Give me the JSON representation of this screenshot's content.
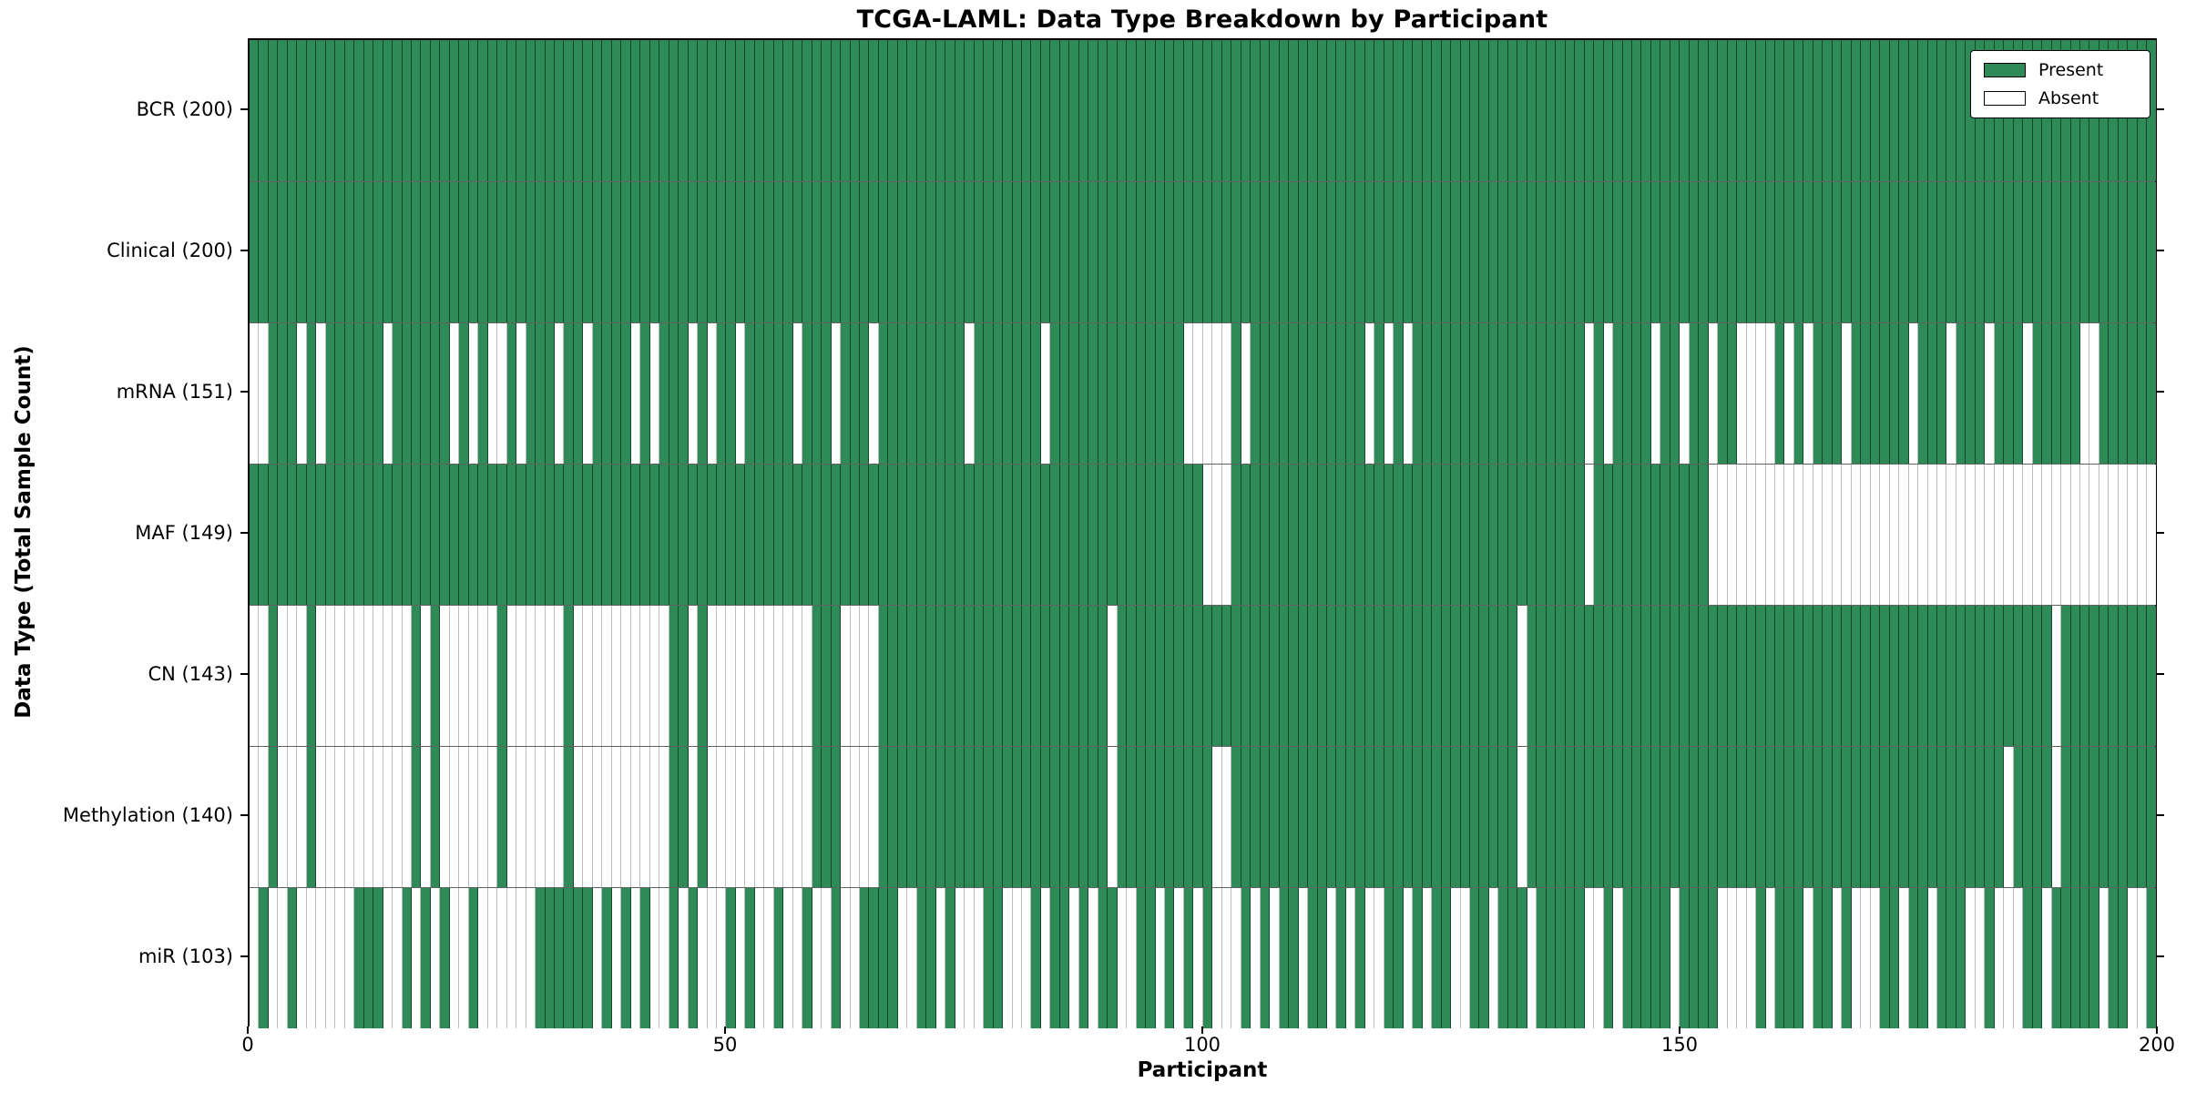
{
  "title": "TCGA-LAML: Data Type Breakdown by Participant",
  "x_axis": {
    "label": "Participant",
    "ticks": [
      0,
      50,
      100,
      150,
      200
    ],
    "range": [
      0,
      200
    ]
  },
  "y_axis": {
    "label": "Data Type (Total Sample Count)"
  },
  "legend": {
    "present_label": "Present",
    "absent_label": "Absent",
    "position": "upper-right"
  },
  "colors": {
    "present": "#2e8b57",
    "absent": "#ffffff",
    "cell_edge_on_green": "rgba(0,0,0,0.50)",
    "cell_edge_on_white": "#bdbdbd",
    "spine": "#000000"
  },
  "chart_data": {
    "type": "heatmap",
    "title": "TCGA-LAML: Data Type Breakdown by Participant",
    "xlabel": "Participant",
    "ylabel": "Data Type (Total Sample Count)",
    "x_range": [
      0,
      200
    ],
    "n_participants": 200,
    "grid": false,
    "legend_entries": [
      "Present",
      "Absent"
    ],
    "rows": [
      {
        "name": "BCR",
        "label": "BCR (200)",
        "present_total": 200,
        "absent": []
      },
      {
        "name": "Clinical",
        "label": "Clinical (200)",
        "present_total": 200,
        "absent": []
      },
      {
        "name": "mRNA",
        "label": "mRNA (151)",
        "present_total": 151,
        "absent": [
          0,
          1,
          5,
          7,
          14,
          21,
          23,
          25,
          26,
          28,
          32,
          35,
          40,
          42,
          46,
          48,
          51,
          57,
          61,
          65,
          75,
          83,
          98,
          99,
          100,
          101,
          102,
          104,
          117,
          119,
          121,
          140,
          142,
          147,
          150,
          153,
          156,
          157,
          158,
          159,
          161,
          163,
          167,
          174,
          178,
          182,
          186,
          192,
          193
        ]
      },
      {
        "name": "MAF",
        "label": "MAF (149)",
        "present_total": 149,
        "absent": [
          100,
          101,
          102,
          140,
          153,
          154,
          155,
          156,
          157,
          158,
          159,
          160,
          161,
          162,
          163,
          164,
          165,
          166,
          167,
          168,
          169,
          170,
          171,
          172,
          173,
          174,
          175,
          176,
          177,
          178,
          179,
          180,
          181,
          182,
          183,
          184,
          185,
          186,
          187,
          188,
          189,
          190,
          191,
          192,
          193,
          194,
          195,
          196,
          197,
          198,
          199
        ]
      },
      {
        "name": "CN",
        "label": "CN (143)",
        "present_total": 143,
        "absent": [
          0,
          1,
          3,
          4,
          5,
          7,
          8,
          9,
          10,
          11,
          12,
          13,
          14,
          15,
          16,
          18,
          20,
          21,
          22,
          23,
          24,
          25,
          27,
          28,
          29,
          30,
          31,
          32,
          34,
          35,
          36,
          37,
          38,
          39,
          40,
          41,
          42,
          43,
          46,
          48,
          49,
          50,
          51,
          52,
          53,
          54,
          55,
          56,
          57,
          58,
          62,
          63,
          64,
          65,
          90,
          133,
          189
        ]
      },
      {
        "name": "Methylation",
        "label": "Methylation (140)",
        "present_total": 140,
        "absent": [
          0,
          1,
          3,
          4,
          5,
          7,
          8,
          9,
          10,
          11,
          12,
          13,
          14,
          15,
          16,
          18,
          20,
          21,
          22,
          23,
          24,
          25,
          27,
          28,
          29,
          30,
          31,
          32,
          34,
          35,
          36,
          37,
          38,
          39,
          40,
          41,
          42,
          43,
          46,
          48,
          49,
          50,
          51,
          52,
          53,
          54,
          55,
          56,
          57,
          58,
          62,
          63,
          64,
          65,
          90,
          101,
          102,
          133,
          184,
          189
        ]
      },
      {
        "name": "miR",
        "label": "miR (103)",
        "present_total": 103,
        "absent": [
          0,
          2,
          3,
          5,
          6,
          7,
          8,
          9,
          10,
          14,
          15,
          17,
          19,
          21,
          22,
          24,
          25,
          26,
          27,
          28,
          29,
          36,
          38,
          40,
          42,
          43,
          45,
          47,
          48,
          49,
          51,
          53,
          54,
          56,
          57,
          59,
          60,
          62,
          63,
          68,
          69,
          72,
          74,
          75,
          76,
          79,
          80,
          81,
          83,
          86,
          88,
          91,
          92,
          95,
          97,
          99,
          101,
          102,
          103,
          105,
          107,
          110,
          113,
          115,
          117,
          118,
          121,
          123,
          126,
          127,
          130,
          134,
          140,
          141,
          143,
          149,
          154,
          155,
          156,
          157,
          159,
          163,
          166,
          168,
          169,
          170,
          173,
          176,
          180,
          181,
          183,
          184,
          185,
          188,
          194,
          197,
          198
        ]
      }
    ]
  }
}
